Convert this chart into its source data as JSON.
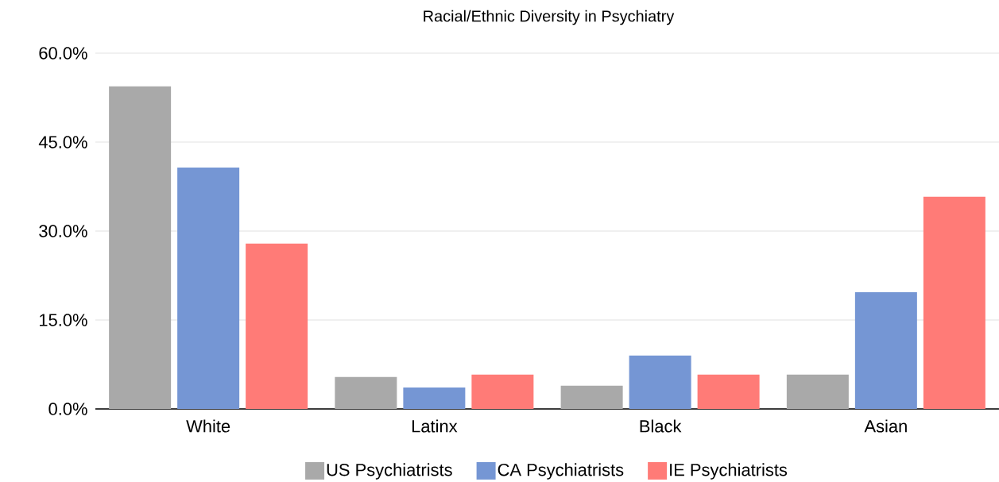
{
  "chart_data": {
    "type": "bar",
    "title": "Racial/Ethnic Diversity in Psychiatry",
    "categories": [
      "White",
      "Latinx",
      "Black",
      "Asian"
    ],
    "series": [
      {
        "name": "US Psychiatrists",
        "color": "#a9a9a9",
        "values": [
          54.4,
          5.4,
          3.9,
          5.8
        ]
      },
      {
        "name": "CA Psychiatrists",
        "color": "#7596d4",
        "values": [
          40.7,
          3.6,
          9.0,
          19.7
        ]
      },
      {
        "name": "IE Psychiatrists",
        "color": "#ff7b77",
        "values": [
          27.9,
          5.8,
          5.8,
          35.8
        ]
      }
    ],
    "ylim": [
      0,
      60
    ],
    "yticks": [
      {
        "value": 0,
        "label": "0.0%"
      },
      {
        "value": 15,
        "label": "15.0%"
      },
      {
        "value": 30,
        "label": "30.0%"
      },
      {
        "value": 45,
        "label": "45.0%"
      },
      {
        "value": 60,
        "label": "60.0%"
      }
    ],
    "grid": "y",
    "legend": "bottom"
  }
}
